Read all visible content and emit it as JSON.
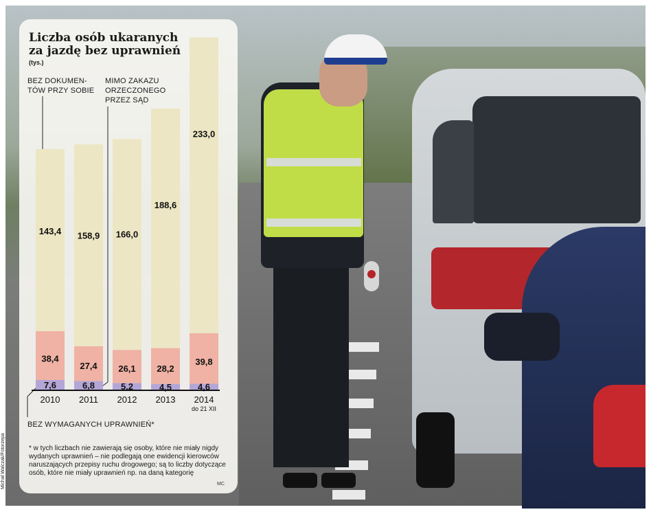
{
  "header": {
    "title_line1": "Liczba osób ukaranych",
    "title_line2": "za jazdę bez uprawnień",
    "unit": "(tys.)"
  },
  "annotations": {
    "top_left_line1": "BEZ DOKUMEN-",
    "top_left_line2": "TÓW PRZY SOBIE",
    "top_mid_line1": "MIMO ZAKAZU",
    "top_mid_line2": "ORZECZONEGO",
    "top_mid_line3": "PRZEZ SĄD",
    "bottom": "BEZ WYMAGANYCH UPRAWNIEŃ*"
  },
  "footnote": "* w tych liczbach nie zawierają się osoby, które nie miały nigdy wydanych uprawnień – nie podlegają one ewidencji kierowców naruszających przepisy ruchu drogowego; są to liczby dotyczące osób, które nie miały uprawnień np. na daną kategorię",
  "author_initials": "MC",
  "photo_credit": "Michał Walczak/Fotorzepa",
  "chart_data": {
    "type": "bar",
    "stacked": true,
    "categories": [
      "2010",
      "2011",
      "2012",
      "2013",
      "2014"
    ],
    "category_sublabels": [
      "",
      "",
      "",
      "",
      "do 21 XII"
    ],
    "series": [
      {
        "name": "BEZ WYMAGANYCH UPRAWNIEŃ*",
        "values_text": [
          "7,6",
          "6,8",
          "5,2",
          "4,5",
          "4,6"
        ],
        "values": [
          7.6,
          6.8,
          5.2,
          4.5,
          4.6
        ],
        "color": "#b3a6d6"
      },
      {
        "name": "MIMO ZAKAZU ORZECZONEGO PRZEZ SĄD",
        "values_text": [
          "38,4",
          "27,4",
          "26,1",
          "28,2",
          "39,8"
        ],
        "values": [
          38.4,
          27.4,
          26.1,
          28.2,
          39.8
        ],
        "color": "#efb2a4"
      },
      {
        "name": "BEZ DOKUMENTÓW PRZY SOBIE",
        "values_text": [
          "143,4",
          "158,9",
          "166,0",
          "188,6",
          "233,0"
        ],
        "values": [
          143.4,
          158.9,
          166.0,
          188.6,
          233.0
        ],
        "color": "#ece6c4"
      }
    ],
    "title": "Liczba osób ukaranych za jazdę bez uprawnień",
    "ylabel": "(tys.)",
    "ylim": [
      0,
      280
    ],
    "grid": false,
    "legend": "inline annotations"
  }
}
